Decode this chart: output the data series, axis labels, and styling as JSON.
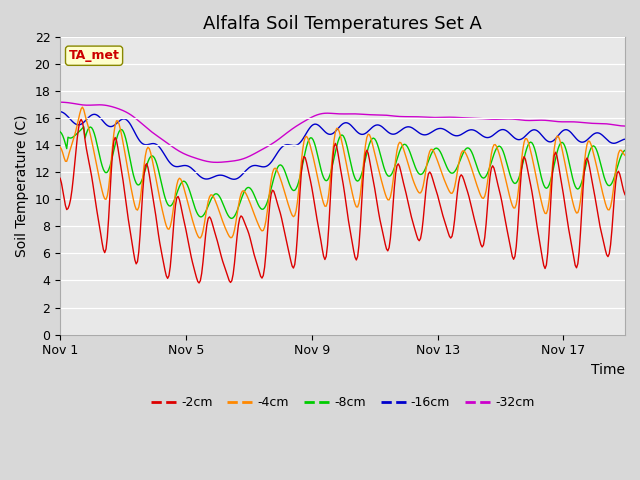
{
  "title": "Alfalfa Soil Temperatures Set A",
  "xlabel": "Time",
  "ylabel": "Soil Temperature (C)",
  "ylim": [
    0,
    22
  ],
  "yticks": [
    0,
    2,
    4,
    6,
    8,
    10,
    12,
    14,
    16,
    18,
    20,
    22
  ],
  "xtick_labels": [
    "Nov 1",
    "Nov 5",
    "Nov 9",
    "Nov 13",
    "Nov 17"
  ],
  "xtick_positions": [
    0,
    96,
    192,
    288,
    384
  ],
  "annotation": "TA_met",
  "annotation_color": "#cc0000",
  "annotation_bg": "#ffffcc",
  "legend_labels": [
    "-2cm",
    "-4cm",
    "-8cm",
    "-16cm",
    "-32cm"
  ],
  "line_colors": [
    "#dd0000",
    "#ff8800",
    "#00cc00",
    "#0000cc",
    "#cc00cc"
  ],
  "bg_color": "#e8e8e8",
  "n_points": 432,
  "title_fontsize": 13,
  "axis_fontsize": 10,
  "tick_fontsize": 9
}
